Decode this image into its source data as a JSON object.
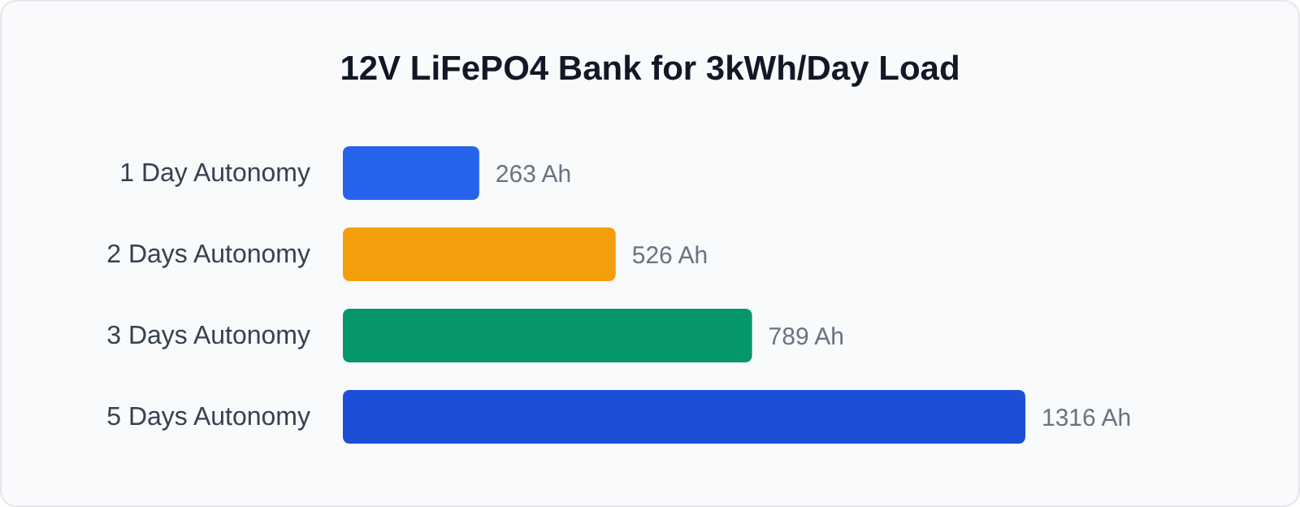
{
  "chart_data": {
    "type": "bar",
    "orientation": "horizontal",
    "title": "12V LiFePO4 Bank for 3kWh/Day Load",
    "categories": [
      "1 Day Autonomy",
      "2 Days Autonomy",
      "3 Days Autonomy",
      "5 Days Autonomy"
    ],
    "values": [
      263,
      526,
      789,
      1316
    ],
    "colors": [
      "#2563eb",
      "#f59e0b",
      "#059669",
      "#1d4ed8"
    ],
    "value_labels": [
      "263 Ah",
      "526 Ah",
      "789 Ah",
      "1316 Ah"
    ],
    "grid": false,
    "legend": false
  }
}
